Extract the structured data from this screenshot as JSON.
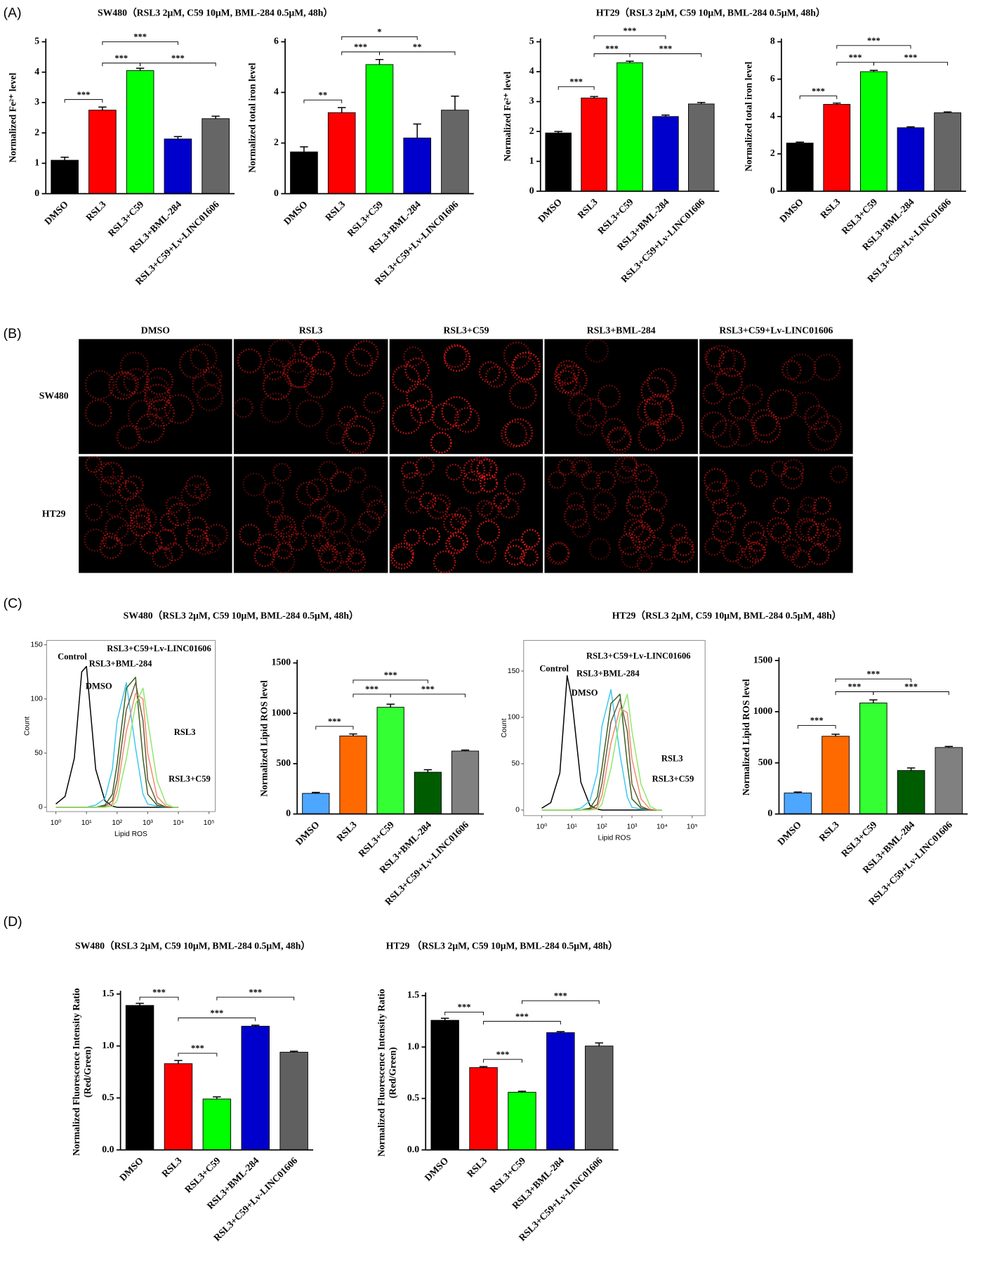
{
  "figure": {
    "panel_labels": [
      "(A)",
      "(B)",
      "(C)",
      "(D)"
    ],
    "group_titles": [
      "SW480（RSL3 2μM, C59 10μM, BML-284 0.5μM,  48h）",
      "HT29（RSL3 2μM, C59 10μM, BML-284 0.5μM,  48h）",
      "SW480（RSL3 2μM, C59 10μM, BML-284 0.5μM,  48h）",
      "HT29（RSL3 2μM, C59 10μM, BML-284 0.5μM,  48h）",
      "SW480（RSL3 2μM, C59 10μM, BML-284 0.5μM,  48h）",
      "HT29 （RSL3 2μM, C59 10μM, BML-284 0.5μM,  48h）"
    ]
  },
  "images": {
    "columns": [
      "DMSO",
      "RSL3",
      "RSL3+C59",
      "RSL3+BML-284",
      "RSL3+C59+Lv-LINC01606"
    ],
    "rows": [
      "SW480",
      "HT29"
    ]
  },
  "chart_data": [
    {
      "type": "bar",
      "ylabel": [
        "Normalized Fe²⁺ level"
      ],
      "categories": [
        "DMSO",
        "RSL3",
        "RSL3+C59",
        "RSL3+BML-284",
        "RSL3+C59+Lv-LINC01606"
      ],
      "colors": [
        "#000000",
        "#ff0000",
        "#00ff00",
        "#0000cc",
        "#666666"
      ],
      "values": [
        1.1,
        2.75,
        4.05,
        1.8,
        2.47
      ],
      "errors": [
        0.1,
        0.1,
        0.08,
        0.08,
        0.08
      ],
      "ylim": [
        0,
        5
      ],
      "yticks": [
        0,
        1,
        2,
        3,
        4,
        5
      ],
      "significance": [
        {
          "from": 0,
          "to": 1,
          "level": 3.1,
          "label": "***"
        },
        {
          "from": 1,
          "to": 2,
          "level": 4.3,
          "label": "***"
        },
        {
          "from": 1,
          "to": 3,
          "level": 5,
          "label": "***"
        },
        {
          "from": 2,
          "to": 4,
          "level": 4.3,
          "label": "***"
        }
      ]
    },
    {
      "type": "bar",
      "ylabel": [
        "Normalized total iron level"
      ],
      "categories": [
        "DMSO",
        "RSL3",
        "RSL3+C59",
        "RSL3+BML-284",
        "RSL3+C59+Lv-LINC01606"
      ],
      "colors": [
        "#000000",
        "#ff0000",
        "#00ff00",
        "#0000cc",
        "#666666"
      ],
      "values": [
        1.65,
        3.2,
        5.1,
        2.2,
        3.3
      ],
      "errors": [
        0.2,
        0.2,
        0.2,
        0.55,
        0.55
      ],
      "ylim": [
        0,
        6
      ],
      "yticks": [
        0,
        2,
        4,
        6
      ],
      "significance": [
        {
          "from": 0,
          "to": 1,
          "level": 3.7,
          "label": "**"
        },
        {
          "from": 1,
          "to": 2,
          "level": 5.6,
          "label": "***"
        },
        {
          "from": 1,
          "to": 3,
          "level": 6.2,
          "label": "*"
        },
        {
          "from": 2,
          "to": 4,
          "level": 5.6,
          "label": "**"
        }
      ]
    },
    {
      "type": "bar",
      "ylabel": [
        "Normalized Fe²⁺ level"
      ],
      "categories": [
        "DMSO",
        "RSL3",
        "RSL3+C59",
        "RSL3+BML-284",
        "RSL3+C59+Lv-LINC01606"
      ],
      "colors": [
        "#000000",
        "#ff0000",
        "#00ff00",
        "#0000cc",
        "#666666"
      ],
      "values": [
        1.95,
        3.12,
        4.3,
        2.5,
        2.92
      ],
      "errors": [
        0.05,
        0.05,
        0.05,
        0.05,
        0.05
      ],
      "ylim": [
        0,
        5
      ],
      "yticks": [
        0,
        1,
        2,
        3,
        4,
        5
      ],
      "significance": [
        {
          "from": 0,
          "to": 1,
          "level": 3.5,
          "label": "***"
        },
        {
          "from": 1,
          "to": 2,
          "level": 4.6,
          "label": "***"
        },
        {
          "from": 1,
          "to": 3,
          "level": 5.2,
          "label": "***"
        },
        {
          "from": 2,
          "to": 4,
          "level": 4.6,
          "label": "***"
        }
      ]
    },
    {
      "type": "bar",
      "ylabel": [
        "Normalized total iron level"
      ],
      "categories": [
        "DMSO",
        "RSL3",
        "RSL3+C59",
        "RSL3+BML-284",
        "RSL3+C59+Lv-LINC01606"
      ],
      "colors": [
        "#000000",
        "#ff0000",
        "#00ff00",
        "#0000cc",
        "#666666"
      ],
      "values": [
        2.58,
        4.65,
        6.4,
        3.4,
        4.2
      ],
      "errors": [
        0.05,
        0.07,
        0.07,
        0.05,
        0.05
      ],
      "ylim": [
        0,
        8
      ],
      "yticks": [
        0,
        2,
        4,
        6,
        8
      ],
      "significance": [
        {
          "from": 0,
          "to": 1,
          "level": 5.1,
          "label": "***"
        },
        {
          "from": 1,
          "to": 2,
          "level": 6.9,
          "label": "***"
        },
        {
          "from": 1,
          "to": 3,
          "level": 7.8,
          "label": "***"
        },
        {
          "from": 2,
          "to": 4,
          "level": 6.9,
          "label": "***"
        }
      ]
    },
    {
      "type": "line",
      "xscale": "log",
      "xlabel": "Lipid ROS",
      "ylabel": "Count",
      "xlim": [
        0.5,
        160000
      ],
      "ylim": [
        -4,
        154
      ],
      "yticks": [
        0,
        50,
        100,
        150
      ],
      "xticks": [
        {
          "value": 1,
          "label": "10⁰"
        },
        {
          "value": 10,
          "label": "10¹"
        },
        {
          "value": 100,
          "label": "10²"
        },
        {
          "value": 1000,
          "label": "10³"
        },
        {
          "value": 10000,
          "label": "10⁴"
        },
        {
          "value": 100000,
          "label": "10⁵"
        }
      ],
      "x": [
        1,
        2,
        4,
        7,
        10,
        20,
        40,
        70,
        100,
        200,
        400,
        700,
        1000,
        2000,
        4000,
        7000,
        10000
      ],
      "series": [
        {
          "name": "Control",
          "color": "#000000",
          "values": [
            3,
            10,
            45,
            125,
            130,
            35,
            6,
            1,
            0,
            0,
            0,
            0,
            0,
            0,
            0,
            0,
            0
          ]
        },
        {
          "name": "DMSO",
          "color": "#3cc8f0",
          "values": [
            0,
            0,
            0,
            0,
            0,
            2,
            8,
            35,
            80,
            115,
            55,
            12,
            3,
            1,
            0,
            0,
            0
          ]
        },
        {
          "name": "RSL3+BML-284",
          "color": "#3a5f1f",
          "values": [
            0,
            0,
            0,
            0,
            0,
            0,
            2,
            12,
            40,
            110,
            120,
            45,
            12,
            2,
            0,
            0,
            0
          ]
        },
        {
          "name": "RSL3+C59+Lv-LINC01606",
          "color": "#6b5a3a",
          "values": [
            0,
            0,
            0,
            0,
            0,
            0,
            1,
            6,
            25,
            90,
            115,
            80,
            25,
            4,
            0,
            0,
            0
          ]
        },
        {
          "name": "RSL3",
          "color": "#f4896a",
          "values": [
            0,
            0,
            0,
            0,
            0,
            0,
            0,
            3,
            15,
            70,
            105,
            100,
            50,
            10,
            1,
            0,
            0
          ]
        },
        {
          "name": "RSL3+C59",
          "color": "#8ee86a",
          "values": [
            0,
            0,
            0,
            0,
            0,
            0,
            0,
            1,
            6,
            45,
            95,
            110,
            80,
            25,
            3,
            0,
            0
          ]
        }
      ]
    },
    {
      "type": "bar",
      "ylabel": [
        "Normalized Lipid ROS level"
      ],
      "categories": [
        "DMSO",
        "RSL3",
        "RSL3+C59",
        "RSL3+BML-284",
        "RSL3+C59+Lv-LINC01606"
      ],
      "colors": [
        "#4da6ff",
        "#ff6a00",
        "#33ff33",
        "#005c00",
        "#808080"
      ],
      "values": [
        205,
        775,
        1060,
        415,
        625
      ],
      "errors": [
        10,
        20,
        30,
        25,
        10
      ],
      "ylim": [
        0,
        1500
      ],
      "yticks": [
        0,
        500,
        1000,
        1500
      ],
      "significance": [
        {
          "from": 0,
          "to": 1,
          "level": 870,
          "label": "***"
        },
        {
          "from": 1,
          "to": 2,
          "level": 1190,
          "label": "***"
        },
        {
          "from": 1,
          "to": 3,
          "level": 1330,
          "label": "***"
        },
        {
          "from": 2,
          "to": 4,
          "level": 1190,
          "label": "***"
        }
      ]
    },
    {
      "type": "line",
      "xscale": "log",
      "xlabel": "Lipid ROS",
      "ylabel": "Count",
      "xlim": [
        0.25,
        270000
      ],
      "ylim": [
        -6,
        183
      ],
      "yticks": [
        0,
        50,
        100,
        150
      ],
      "xticks": [
        {
          "value": 1,
          "label": "10⁰"
        },
        {
          "value": 10,
          "label": "10¹"
        },
        {
          "value": 100,
          "label": "10²"
        },
        {
          "value": 1000,
          "label": "10³"
        },
        {
          "value": 10000,
          "label": "10⁴"
        },
        {
          "value": 100000,
          "label": "10⁵"
        }
      ],
      "x": [
        1,
        2,
        4,
        7,
        10,
        20,
        40,
        70,
        100,
        200,
        400,
        700,
        1000,
        2000,
        4000,
        7000,
        10000
      ],
      "series": [
        {
          "name": "Control",
          "color": "#000000",
          "values": [
            2,
            8,
            40,
            145,
            120,
            30,
            5,
            1,
            0,
            0,
            0,
            0,
            0,
            0,
            0,
            0,
            0
          ]
        },
        {
          "name": "DMSO",
          "color": "#3cc8f0",
          "values": [
            0,
            0,
            0,
            0,
            0,
            2,
            10,
            40,
            90,
            130,
            60,
            14,
            3,
            1,
            0,
            0,
            0
          ]
        },
        {
          "name": "RSL3+BML-284",
          "color": "#3a5f1f",
          "values": [
            0,
            0,
            0,
            0,
            0,
            0,
            2,
            14,
            45,
            115,
            125,
            50,
            12,
            2,
            0,
            0,
            0
          ]
        },
        {
          "name": "RSL3+C59+Lv-LINC01606",
          "color": "#6b5a3a",
          "values": [
            0,
            0,
            0,
            0,
            0,
            0,
            1,
            6,
            28,
            95,
            120,
            85,
            28,
            4,
            0,
            0,
            0
          ]
        },
        {
          "name": "RSL3",
          "color": "#f4896a",
          "values": [
            0,
            0,
            0,
            0,
            0,
            0,
            0,
            3,
            15,
            72,
            110,
            105,
            55,
            12,
            1,
            0,
            0
          ]
        },
        {
          "name": "RSL3+C59",
          "color": "#8ee86a",
          "values": [
            0,
            0,
            0,
            0,
            0,
            0,
            0,
            1,
            6,
            45,
            100,
            125,
            85,
            28,
            4,
            0,
            0
          ]
        }
      ]
    },
    {
      "type": "bar",
      "ylabel": [
        "Normalized Lipid ROS level"
      ],
      "categories": [
        "DMSO",
        "RSL3",
        "RSL3+C59",
        "RSL3+BML-284",
        "RSL3+C59+Lv-LINC01606"
      ],
      "colors": [
        "#4da6ff",
        "#ff6a00",
        "#33ff33",
        "#005c00",
        "#808080"
      ],
      "values": [
        205,
        760,
        1085,
        425,
        650
      ],
      "errors": [
        10,
        20,
        30,
        25,
        10
      ],
      "ylim": [
        0,
        1500
      ],
      "yticks": [
        0,
        500,
        1000,
        1500
      ],
      "significance": [
        {
          "from": 0,
          "to": 1,
          "level": 865,
          "label": "***"
        },
        {
          "from": 1,
          "to": 2,
          "level": 1195,
          "label": "***"
        },
        {
          "from": 1,
          "to": 3,
          "level": 1320,
          "label": "***"
        },
        {
          "from": 2,
          "to": 4,
          "level": 1195,
          "label": "***"
        }
      ]
    },
    {
      "type": "bar",
      "ylabel": [
        "Normalized Fluorescence Intensity Ratio",
        "(Red/Green)"
      ],
      "categories": [
        "DMSO",
        "RSL3",
        "RSL3+C59",
        "RSL3+BML-284",
        "RSL3+C59+Lv-LINC01606"
      ],
      "colors": [
        "#000000",
        "#ff0000",
        "#00ff00",
        "#0000cc",
        "#606060"
      ],
      "values": [
        1.39,
        0.83,
        0.49,
        1.19,
        0.94
      ],
      "errors": [
        0.02,
        0.03,
        0.02,
        0.01,
        0.01
      ],
      "ylim": [
        0,
        1.5
      ],
      "yticks": [
        {
          "value": 0,
          "label": "0.0"
        },
        {
          "value": 0.5,
          "label": "0.5"
        },
        {
          "value": 1,
          "label": "1.0"
        },
        {
          "value": 1.5,
          "label": "1.5"
        }
      ],
      "significance": [
        {
          "from": 0,
          "to": 1,
          "level": 1.47,
          "label": "***"
        },
        {
          "from": 1,
          "to": 2,
          "level": 0.93,
          "label": "***"
        },
        {
          "from": 1,
          "to": 3,
          "level": 1.27,
          "label": "***"
        },
        {
          "from": 2,
          "to": 4,
          "level": 1.47,
          "label": "***"
        }
      ]
    },
    {
      "type": "bar",
      "ylabel": [
        "Normalized Fluorescence Intensity Ratio",
        "(Red/Green)"
      ],
      "categories": [
        "DMSO",
        "RSL3",
        "RSL3+C59",
        "RSL3+BML-284",
        "RSL3+C59+Lv-LINC01606"
      ],
      "colors": [
        "#000000",
        "#ff0000",
        "#00ff00",
        "#0000cc",
        "#606060"
      ],
      "values": [
        1.26,
        0.8,
        0.56,
        1.14,
        1.01
      ],
      "errors": [
        0.02,
        0.01,
        0.01,
        0.01,
        0.03
      ],
      "ylim": [
        0,
        1.5
      ],
      "yticks": [
        {
          "value": 0,
          "label": "0.0"
        },
        {
          "value": 0.5,
          "label": "0.5"
        },
        {
          "value": 1,
          "label": "1.0"
        },
        {
          "value": 1.5,
          "label": "1.5"
        }
      ],
      "significance": [
        {
          "from": 0,
          "to": 1,
          "level": 1.34,
          "label": "***"
        },
        {
          "from": 1,
          "to": 2,
          "level": 0.88,
          "label": "***"
        },
        {
          "from": 1,
          "to": 3,
          "level": 1.25,
          "label": "***"
        },
        {
          "from": 2,
          "to": 4,
          "level": 1.45,
          "label": "***"
        }
      ]
    }
  ]
}
